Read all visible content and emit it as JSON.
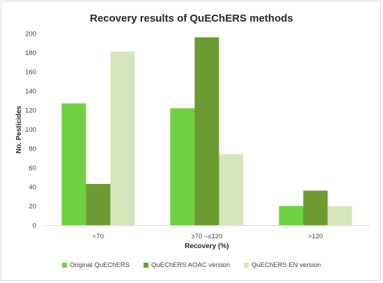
{
  "chart_data": {
    "type": "bar",
    "title": "Recovery results of QuEChERS methods",
    "xlabel": "Recovery (%)",
    "ylabel": "No. Pesticides",
    "categories": [
      "<70",
      "≥70 –≤120",
      ">120"
    ],
    "ylim": [
      0,
      200
    ],
    "yticks": [
      0,
      20,
      40,
      60,
      80,
      100,
      120,
      140,
      160,
      180,
      200
    ],
    "grid": false,
    "legend_position": "bottom",
    "series": [
      {
        "name": "Original QuEChERS",
        "color": "#6fd142",
        "values": [
          127,
          122,
          20
        ]
      },
      {
        "name": "QuEChERS AOAC version",
        "color": "#6c9a33",
        "values": [
          43,
          196,
          36
        ]
      },
      {
        "name": "QuEChERS EN version",
        "color": "#d7e5bd",
        "values": [
          181,
          74,
          20
        ]
      }
    ]
  }
}
